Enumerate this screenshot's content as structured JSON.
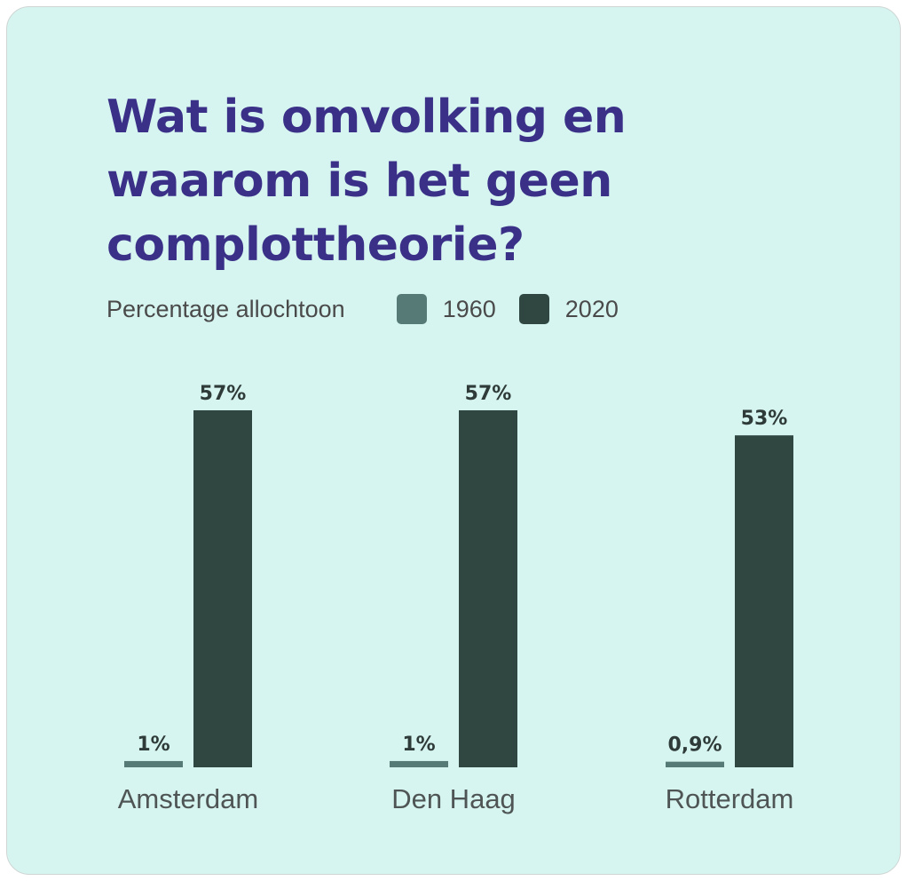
{
  "chart_data": {
    "type": "bar",
    "title": "Wat is omvolking en waarom is het geen complottheorie?",
    "legend_title": "Percentage allochtoon",
    "legend_position": "top",
    "grid": false,
    "categories": [
      "Amsterdam",
      "Den Haag",
      "Rotterdam"
    ],
    "series": [
      {
        "name": "1960",
        "values": [
          1,
          1,
          0.9
        ],
        "labels": [
          "1%",
          "1%",
          "0,9%"
        ],
        "color": "#567a76"
      },
      {
        "name": "2020",
        "values": [
          57,
          57,
          53
        ],
        "labels": [
          "57%",
          "57%",
          "53%"
        ],
        "color": "#2f4641"
      }
    ],
    "ylim": [
      0,
      57
    ]
  }
}
